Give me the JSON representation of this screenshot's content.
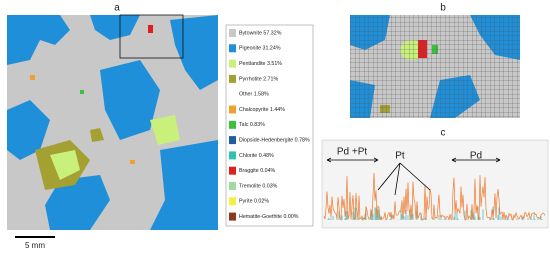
{
  "panels": {
    "a": "a",
    "b": "b",
    "c": "c"
  },
  "legend": [
    {
      "label": "Bytownite 57.32%",
      "color": "#c8c8c8"
    },
    {
      "label": "Pigeonite 31.24%",
      "color": "#1e8fd8"
    },
    {
      "label": "Pentlandite 3.51%",
      "color": "#c8f07a"
    },
    {
      "label": "Pyrrhotite 2.71%",
      "color": "#a4a032"
    },
    {
      "label": "Other 1.58%",
      "color": "#ffffff"
    },
    {
      "label": "Chalcopyrite 1.44%",
      "color": "#f0a030"
    },
    {
      "label": "Talc 0.83%",
      "color": "#3cbf3c"
    },
    {
      "label": "Diopside-Hedenbergite 0.78%",
      "color": "#1f5e9e"
    },
    {
      "label": "Chlorite 0.48%",
      "color": "#2fc2b0"
    },
    {
      "label": "Braggite 0.04%",
      "color": "#e02020"
    },
    {
      "label": "Tremolite 0.03%",
      "color": "#a2d8a2"
    },
    {
      "label": "Pyrite 0.02%",
      "color": "#f2f044"
    },
    {
      "label": "Hematite-Goethite 0.00%",
      "color": "#8b3a1a"
    }
  ],
  "scale_bar": "5 mm",
  "annotations": {
    "pd_pt": "Pd +Pt",
    "pt": "Pt",
    "pd": "Pd"
  }
}
